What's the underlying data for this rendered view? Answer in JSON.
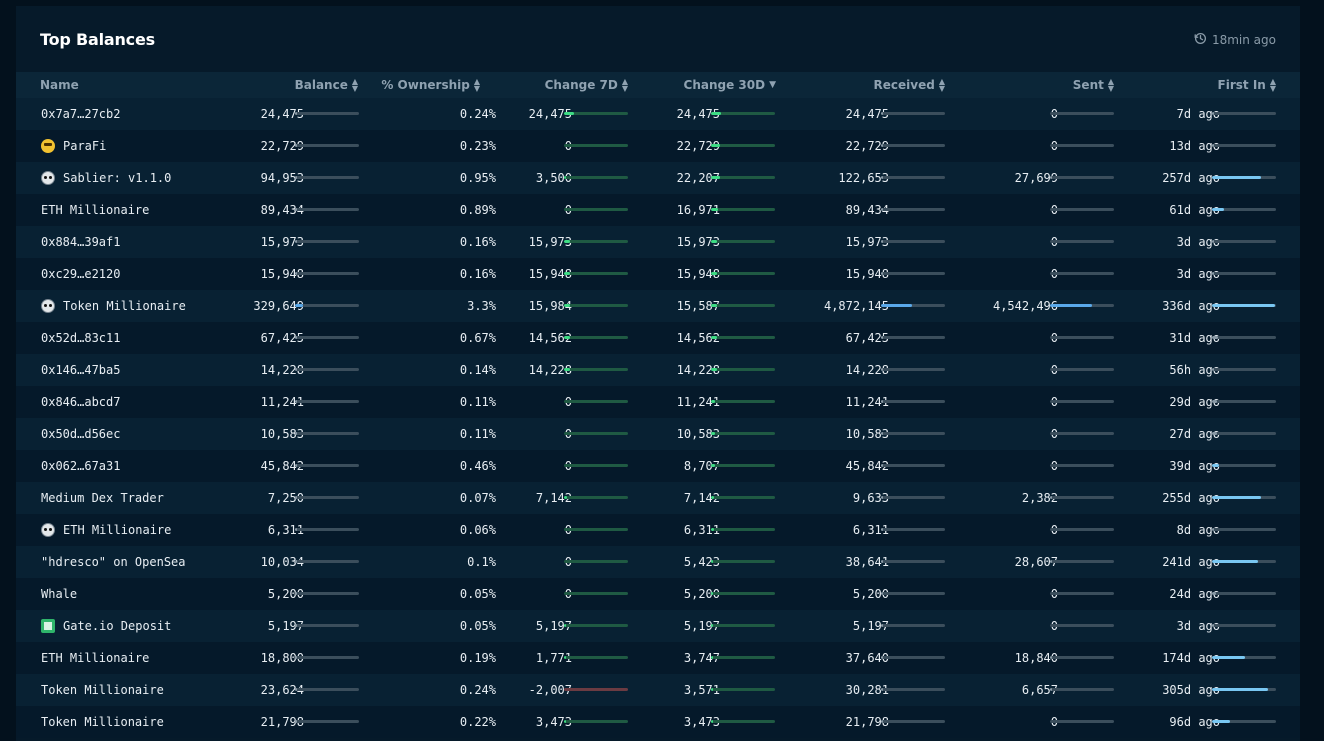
{
  "panel": {
    "title": "Top Balances",
    "updated": "18min ago",
    "clock_icon": "clock-history-icon"
  },
  "columns": [
    {
      "label": "Name",
      "sort": "none"
    },
    {
      "label": "Balance",
      "sort": "both"
    },
    {
      "label": "% Ownership",
      "sort": "both"
    },
    {
      "label": "Change 7D",
      "sort": "both"
    },
    {
      "label": "Change 30D",
      "sort": "desc"
    },
    {
      "label": "Received",
      "sort": "both"
    },
    {
      "label": "Sent",
      "sort": "both"
    },
    {
      "label": "First In",
      "sort": "both"
    }
  ],
  "colors": {
    "bar_track": "#3b4e5c",
    "bar_fill_gray": "#8a9aa6",
    "bar_fill_blue": "#5aa9ea",
    "bar_track_green": "#1f5a43",
    "bar_fill_green": "#3ddc84",
    "bar_track_red": "#6b3b42",
    "first_in_fill": "#79c7f2"
  },
  "rows": [
    {
      "name": "0x7a7…27cb2",
      "icon": "",
      "balance": "24,475",
      "balance_frac": 0.02,
      "ownership": "0.24%",
      "change7d": "24,475",
      "change7d_frac": 0.15,
      "change30d": "24,475",
      "change30d_frac": 0.15,
      "received": "24,475",
      "received_frac": 0.005,
      "sent": "0",
      "sent_frac": 0,
      "first_in": "7d ago",
      "first_in_frac": 0.02
    },
    {
      "name": "ParaFi",
      "icon": "face-with-sunglasses-icon",
      "balance": "22,729",
      "balance_frac": 0.02,
      "ownership": "0.23%",
      "change7d": "0",
      "change7d_frac": 0,
      "change30d": "22,729",
      "change30d_frac": 0.14,
      "received": "22,729",
      "received_frac": 0.005,
      "sent": "0",
      "sent_frac": 0,
      "first_in": "13d ago",
      "first_in_frac": 0.03
    },
    {
      "name": "Sablier: v1.1.0",
      "icon": "robot-face-icon",
      "balance": "94,953",
      "balance_frac": 0.03,
      "ownership": "0.95%",
      "change7d": "3,500",
      "change7d_frac": 0.02,
      "change30d": "22,207",
      "change30d_frac": 0.14,
      "received": "122,653",
      "received_frac": 0.025,
      "sent": "27,699",
      "sent_frac": 0.01,
      "first_in": "257d ago",
      "first_in_frac": 0.76
    },
    {
      "name": "ETH Millionaire",
      "icon": "",
      "balance": "89,434",
      "balance_frac": 0.03,
      "ownership": "0.89%",
      "change7d": "0",
      "change7d_frac": 0,
      "change30d": "16,971",
      "change30d_frac": 0.11,
      "received": "89,434",
      "received_frac": 0.02,
      "sent": "0",
      "sent_frac": 0,
      "first_in": "61d ago",
      "first_in_frac": 0.18
    },
    {
      "name": "0x884…39af1",
      "icon": "",
      "balance": "15,973",
      "balance_frac": 0.01,
      "ownership": "0.16%",
      "change7d": "15,973",
      "change7d_frac": 0.1,
      "change30d": "15,973",
      "change30d_frac": 0.1,
      "received": "15,973",
      "received_frac": 0.003,
      "sent": "0",
      "sent_frac": 0,
      "first_in": "3d ago",
      "first_in_frac": 0.01
    },
    {
      "name": "0xc29…e2120",
      "icon": "",
      "balance": "15,948",
      "balance_frac": 0.01,
      "ownership": "0.16%",
      "change7d": "15,948",
      "change7d_frac": 0.1,
      "change30d": "15,948",
      "change30d_frac": 0.1,
      "received": "15,948",
      "received_frac": 0.003,
      "sent": "0",
      "sent_frac": 0,
      "first_in": "3d ago",
      "first_in_frac": 0.01
    },
    {
      "name": "Token Millionaire",
      "icon": "robot-face-icon",
      "balance": "329,649",
      "balance_frac": 0.12,
      "ownership": "3.3%",
      "change7d": "15,984",
      "change7d_frac": 0.1,
      "change30d": "15,587",
      "change30d_frac": 0.1,
      "received": "4,872,145",
      "received_frac": 0.48,
      "sent": "4,542,496",
      "sent_frac": 0.65,
      "first_in": "336d ago",
      "first_in_frac": 0.98
    },
    {
      "name": "0x52d…83c11",
      "icon": "",
      "balance": "67,425",
      "balance_frac": 0.02,
      "ownership": "0.67%",
      "change7d": "14,562",
      "change7d_frac": 0.09,
      "change30d": "14,562",
      "change30d_frac": 0.09,
      "received": "67,425",
      "received_frac": 0.01,
      "sent": "0",
      "sent_frac": 0,
      "first_in": "31d ago",
      "first_in_frac": 0.09
    },
    {
      "name": "0x146…47ba5",
      "icon": "",
      "balance": "14,228",
      "balance_frac": 0.01,
      "ownership": "0.14%",
      "change7d": "14,228",
      "change7d_frac": 0.09,
      "change30d": "14,228",
      "change30d_frac": 0.09,
      "received": "14,228",
      "received_frac": 0.003,
      "sent": "0",
      "sent_frac": 0,
      "first_in": "56h ago",
      "first_in_frac": 0.01
    },
    {
      "name": "0x846…abcd7",
      "icon": "",
      "balance": "11,241",
      "balance_frac": 0.01,
      "ownership": "0.11%",
      "change7d": "0",
      "change7d_frac": 0,
      "change30d": "11,241",
      "change30d_frac": 0.07,
      "received": "11,241",
      "received_frac": 0.002,
      "sent": "0",
      "sent_frac": 0,
      "first_in": "29d ago",
      "first_in_frac": 0.08
    },
    {
      "name": "0x50d…d56ec",
      "icon": "",
      "balance": "10,583",
      "balance_frac": 0.01,
      "ownership": "0.11%",
      "change7d": "0",
      "change7d_frac": 0,
      "change30d": "10,583",
      "change30d_frac": 0.07,
      "received": "10,583",
      "received_frac": 0.002,
      "sent": "0",
      "sent_frac": 0,
      "first_in": "27d ago",
      "first_in_frac": 0.08
    },
    {
      "name": "0x062…67a31",
      "icon": "",
      "balance": "45,842",
      "balance_frac": 0.015,
      "ownership": "0.46%",
      "change7d": "0",
      "change7d_frac": 0,
      "change30d": "8,707",
      "change30d_frac": 0.06,
      "received": "45,842",
      "received_frac": 0.01,
      "sent": "0",
      "sent_frac": 0,
      "first_in": "39d ago",
      "first_in_frac": 0.11
    },
    {
      "name": "Medium Dex Trader",
      "icon": "",
      "balance": "7,250",
      "balance_frac": 0.005,
      "ownership": "0.07%",
      "change7d": "7,142",
      "change7d_frac": 0.04,
      "change30d": "7,142",
      "change30d_frac": 0.05,
      "received": "9,633",
      "received_frac": 0.002,
      "sent": "2,382",
      "sent_frac": 0.002,
      "first_in": "255d ago",
      "first_in_frac": 0.76
    },
    {
      "name": "ETH Millionaire",
      "icon": "robot-face-icon",
      "balance": "6,311",
      "balance_frac": 0.005,
      "ownership": "0.06%",
      "change7d": "0",
      "change7d_frac": 0,
      "change30d": "6,311",
      "change30d_frac": 0.04,
      "received": "6,311",
      "received_frac": 0.001,
      "sent": "0",
      "sent_frac": 0,
      "first_in": "8d ago",
      "first_in_frac": 0.02
    },
    {
      "name": "\"hdresco\" on OpenSea",
      "icon": "",
      "balance": "10,034",
      "balance_frac": 0.005,
      "ownership": "0.1%",
      "change7d": "0",
      "change7d_frac": 0,
      "change30d": "5,423",
      "change30d_frac": 0.03,
      "received": "38,641",
      "received_frac": 0.008,
      "sent": "28,607",
      "sent_frac": 0.01,
      "first_in": "241d ago",
      "first_in_frac": 0.72
    },
    {
      "name": "Whale",
      "icon": "",
      "balance": "5,200",
      "balance_frac": 0.005,
      "ownership": "0.05%",
      "change7d": "0",
      "change7d_frac": 0,
      "change30d": "5,200",
      "change30d_frac": 0.03,
      "received": "5,200",
      "received_frac": 0.001,
      "sent": "0",
      "sent_frac": 0,
      "first_in": "24d ago",
      "first_in_frac": 0.07
    },
    {
      "name": "Gate.io Deposit",
      "icon": "gate-io-icon",
      "balance": "5,197",
      "balance_frac": 0.005,
      "ownership": "0.05%",
      "change7d": "5,197",
      "change7d_frac": 0.03,
      "change30d": "5,197",
      "change30d_frac": 0.03,
      "received": "5,197",
      "received_frac": 0.001,
      "sent": "0",
      "sent_frac": 0,
      "first_in": "3d ago",
      "first_in_frac": 0.01
    },
    {
      "name": "ETH Millionaire",
      "icon": "",
      "balance": "18,800",
      "balance_frac": 0.01,
      "ownership": "0.19%",
      "change7d": "1,771",
      "change7d_frac": 0.01,
      "change30d": "3,747",
      "change30d_frac": 0.02,
      "received": "37,640",
      "received_frac": 0.008,
      "sent": "18,840",
      "sent_frac": 0.005,
      "first_in": "174d ago",
      "first_in_frac": 0.51
    },
    {
      "name": "Token Millionaire",
      "icon": "",
      "balance": "23,624",
      "balance_frac": 0.01,
      "ownership": "0.24%",
      "change7d": "-2,007",
      "change7d_frac": -0.01,
      "change30d": "3,571",
      "change30d_frac": 0.02,
      "received": "30,281",
      "received_frac": 0.006,
      "sent": "6,657",
      "sent_frac": 0.002,
      "first_in": "305d ago",
      "first_in_frac": 0.88
    },
    {
      "name": "Token Millionaire",
      "icon": "",
      "balance": "21,798",
      "balance_frac": 0.01,
      "ownership": "0.22%",
      "change7d": "3,473",
      "change7d_frac": 0.02,
      "change30d": "3,473",
      "change30d_frac": 0.02,
      "received": "21,798",
      "received_frac": 0.004,
      "sent": "0",
      "sent_frac": 0,
      "first_in": "96d ago",
      "first_in_frac": 0.28
    }
  ]
}
